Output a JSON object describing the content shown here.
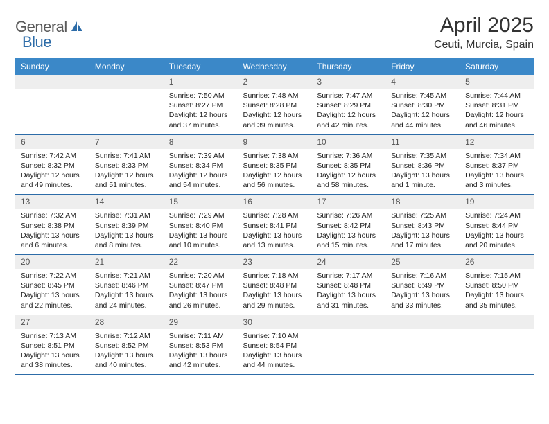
{
  "logo": {
    "general": "General",
    "blue": "Blue"
  },
  "title": "April 2025",
  "location": "Ceuti, Murcia, Spain",
  "colors": {
    "header_bg": "#3b88c8",
    "header_text": "#ffffff",
    "daynum_bg": "#eeeeee",
    "border": "#2d6ca8",
    "logo_gray": "#5a5a5a",
    "logo_blue": "#2d6ca8"
  },
  "day_headers": [
    "Sunday",
    "Monday",
    "Tuesday",
    "Wednesday",
    "Thursday",
    "Friday",
    "Saturday"
  ],
  "weeks": [
    [
      null,
      null,
      {
        "num": "1",
        "sunrise": "Sunrise: 7:50 AM",
        "sunset": "Sunset: 8:27 PM",
        "daylight": "Daylight: 12 hours and 37 minutes."
      },
      {
        "num": "2",
        "sunrise": "Sunrise: 7:48 AM",
        "sunset": "Sunset: 8:28 PM",
        "daylight": "Daylight: 12 hours and 39 minutes."
      },
      {
        "num": "3",
        "sunrise": "Sunrise: 7:47 AM",
        "sunset": "Sunset: 8:29 PM",
        "daylight": "Daylight: 12 hours and 42 minutes."
      },
      {
        "num": "4",
        "sunrise": "Sunrise: 7:45 AM",
        "sunset": "Sunset: 8:30 PM",
        "daylight": "Daylight: 12 hours and 44 minutes."
      },
      {
        "num": "5",
        "sunrise": "Sunrise: 7:44 AM",
        "sunset": "Sunset: 8:31 PM",
        "daylight": "Daylight: 12 hours and 46 minutes."
      }
    ],
    [
      {
        "num": "6",
        "sunrise": "Sunrise: 7:42 AM",
        "sunset": "Sunset: 8:32 PM",
        "daylight": "Daylight: 12 hours and 49 minutes."
      },
      {
        "num": "7",
        "sunrise": "Sunrise: 7:41 AM",
        "sunset": "Sunset: 8:33 PM",
        "daylight": "Daylight: 12 hours and 51 minutes."
      },
      {
        "num": "8",
        "sunrise": "Sunrise: 7:39 AM",
        "sunset": "Sunset: 8:34 PM",
        "daylight": "Daylight: 12 hours and 54 minutes."
      },
      {
        "num": "9",
        "sunrise": "Sunrise: 7:38 AM",
        "sunset": "Sunset: 8:35 PM",
        "daylight": "Daylight: 12 hours and 56 minutes."
      },
      {
        "num": "10",
        "sunrise": "Sunrise: 7:36 AM",
        "sunset": "Sunset: 8:35 PM",
        "daylight": "Daylight: 12 hours and 58 minutes."
      },
      {
        "num": "11",
        "sunrise": "Sunrise: 7:35 AM",
        "sunset": "Sunset: 8:36 PM",
        "daylight": "Daylight: 13 hours and 1 minute."
      },
      {
        "num": "12",
        "sunrise": "Sunrise: 7:34 AM",
        "sunset": "Sunset: 8:37 PM",
        "daylight": "Daylight: 13 hours and 3 minutes."
      }
    ],
    [
      {
        "num": "13",
        "sunrise": "Sunrise: 7:32 AM",
        "sunset": "Sunset: 8:38 PM",
        "daylight": "Daylight: 13 hours and 6 minutes."
      },
      {
        "num": "14",
        "sunrise": "Sunrise: 7:31 AM",
        "sunset": "Sunset: 8:39 PM",
        "daylight": "Daylight: 13 hours and 8 minutes."
      },
      {
        "num": "15",
        "sunrise": "Sunrise: 7:29 AM",
        "sunset": "Sunset: 8:40 PM",
        "daylight": "Daylight: 13 hours and 10 minutes."
      },
      {
        "num": "16",
        "sunrise": "Sunrise: 7:28 AM",
        "sunset": "Sunset: 8:41 PM",
        "daylight": "Daylight: 13 hours and 13 minutes."
      },
      {
        "num": "17",
        "sunrise": "Sunrise: 7:26 AM",
        "sunset": "Sunset: 8:42 PM",
        "daylight": "Daylight: 13 hours and 15 minutes."
      },
      {
        "num": "18",
        "sunrise": "Sunrise: 7:25 AM",
        "sunset": "Sunset: 8:43 PM",
        "daylight": "Daylight: 13 hours and 17 minutes."
      },
      {
        "num": "19",
        "sunrise": "Sunrise: 7:24 AM",
        "sunset": "Sunset: 8:44 PM",
        "daylight": "Daylight: 13 hours and 20 minutes."
      }
    ],
    [
      {
        "num": "20",
        "sunrise": "Sunrise: 7:22 AM",
        "sunset": "Sunset: 8:45 PM",
        "daylight": "Daylight: 13 hours and 22 minutes."
      },
      {
        "num": "21",
        "sunrise": "Sunrise: 7:21 AM",
        "sunset": "Sunset: 8:46 PM",
        "daylight": "Daylight: 13 hours and 24 minutes."
      },
      {
        "num": "22",
        "sunrise": "Sunrise: 7:20 AM",
        "sunset": "Sunset: 8:47 PM",
        "daylight": "Daylight: 13 hours and 26 minutes."
      },
      {
        "num": "23",
        "sunrise": "Sunrise: 7:18 AM",
        "sunset": "Sunset: 8:48 PM",
        "daylight": "Daylight: 13 hours and 29 minutes."
      },
      {
        "num": "24",
        "sunrise": "Sunrise: 7:17 AM",
        "sunset": "Sunset: 8:48 PM",
        "daylight": "Daylight: 13 hours and 31 minutes."
      },
      {
        "num": "25",
        "sunrise": "Sunrise: 7:16 AM",
        "sunset": "Sunset: 8:49 PM",
        "daylight": "Daylight: 13 hours and 33 minutes."
      },
      {
        "num": "26",
        "sunrise": "Sunrise: 7:15 AM",
        "sunset": "Sunset: 8:50 PM",
        "daylight": "Daylight: 13 hours and 35 minutes."
      }
    ],
    [
      {
        "num": "27",
        "sunrise": "Sunrise: 7:13 AM",
        "sunset": "Sunset: 8:51 PM",
        "daylight": "Daylight: 13 hours and 38 minutes."
      },
      {
        "num": "28",
        "sunrise": "Sunrise: 7:12 AM",
        "sunset": "Sunset: 8:52 PM",
        "daylight": "Daylight: 13 hours and 40 minutes."
      },
      {
        "num": "29",
        "sunrise": "Sunrise: 7:11 AM",
        "sunset": "Sunset: 8:53 PM",
        "daylight": "Daylight: 13 hours and 42 minutes."
      },
      {
        "num": "30",
        "sunrise": "Sunrise: 7:10 AM",
        "sunset": "Sunset: 8:54 PM",
        "daylight": "Daylight: 13 hours and 44 minutes."
      },
      null,
      null,
      null
    ]
  ]
}
